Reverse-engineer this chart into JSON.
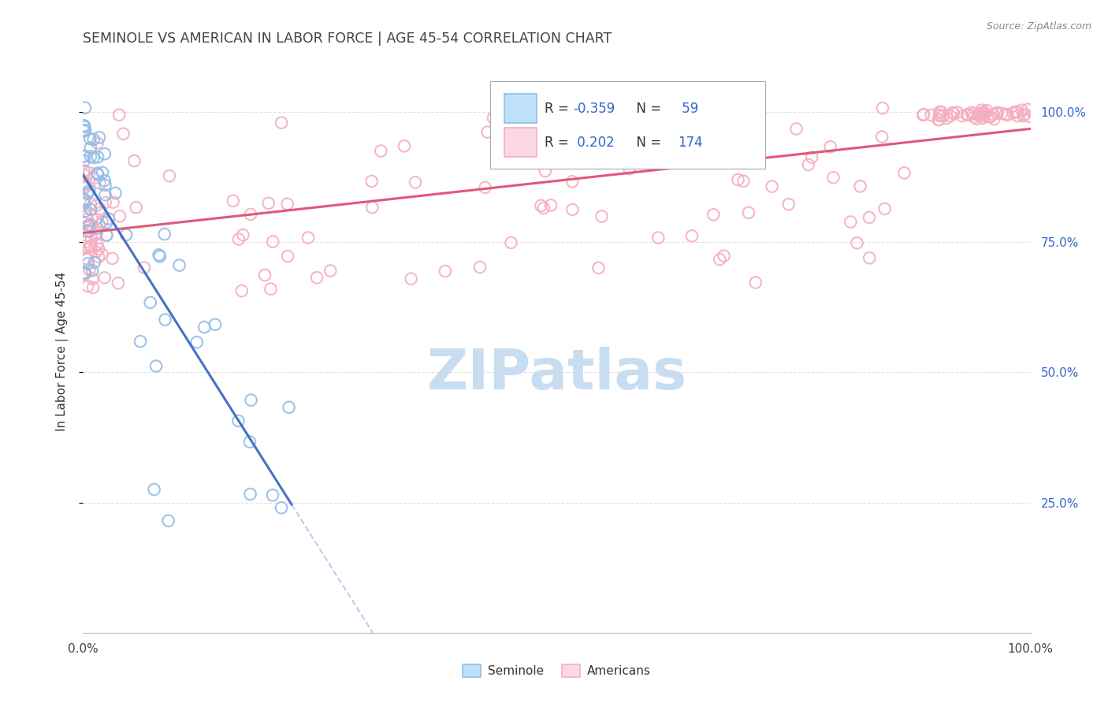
{
  "title": "SEMINOLE VS AMERICAN IN LABOR FORCE | AGE 45-54 CORRELATION CHART",
  "source": "Source: ZipAtlas.com",
  "ylabel": "In Labor Force | Age 45-54",
  "ytick_labels": [
    "100.0%",
    "75.0%",
    "50.0%",
    "25.0%"
  ],
  "ytick_values": [
    1.0,
    0.75,
    0.5,
    0.25
  ],
  "xlim": [
    0.0,
    1.0
  ],
  "ylim": [
    0.0,
    1.08
  ],
  "legend_blue_label": "Seminole",
  "legend_pink_label": "Americans",
  "R_blue": -0.359,
  "N_blue": 59,
  "R_pink": 0.202,
  "N_pink": 174,
  "blue_scatter_color": "#92bde8",
  "pink_scatter_color": "#f5aec0",
  "blue_line_color": "#4472c4",
  "pink_line_color": "#e05878",
  "legend_text_color": "#3366cc",
  "watermark_text": "ZIPatlas",
  "watermark_color": "#c8ddf0",
  "grid_color": "#cccccc",
  "title_color": "#444444",
  "axis_label_color": "#333333",
  "right_axis_color": "#3366cc",
  "source_color": "#888888"
}
